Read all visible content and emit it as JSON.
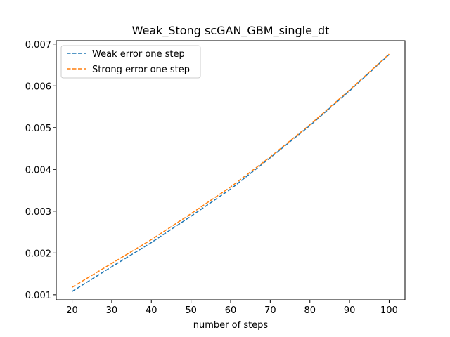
{
  "chart_data": {
    "type": "line",
    "title": "Weak_Stong scGAN_GBM_single_dt",
    "xlabel": "number of steps",
    "ylabel": "",
    "xlim": [
      16,
      104
    ],
    "ylim": [
      0.00088,
      0.00708
    ],
    "xticks": [
      20,
      30,
      40,
      50,
      60,
      70,
      80,
      90,
      100
    ],
    "yticks": [
      0.001,
      0.002,
      0.003,
      0.004,
      0.005,
      0.006,
      0.007
    ],
    "ytick_labels": [
      "0.001",
      "0.002",
      "0.003",
      "0.004",
      "0.005",
      "0.006",
      "0.007"
    ],
    "grid": false,
    "legend_position": "top-left",
    "x": [
      20,
      30,
      40,
      50,
      60,
      70,
      80,
      90,
      100
    ],
    "series": [
      {
        "name": "Weak error one step",
        "color": "#1f77b4",
        "style": "dashed",
        "values": [
          0.00108,
          0.00167,
          0.00225,
          0.00288,
          0.00353,
          0.00428,
          0.00505,
          0.00588,
          0.00675
        ]
      },
      {
        "name": "Strong error one step",
        "color": "#ff7f0e",
        "style": "dashed",
        "values": [
          0.00118,
          0.00175,
          0.00232,
          0.00294,
          0.00358,
          0.0043,
          0.00507,
          0.0059,
          0.00676
        ]
      }
    ]
  }
}
